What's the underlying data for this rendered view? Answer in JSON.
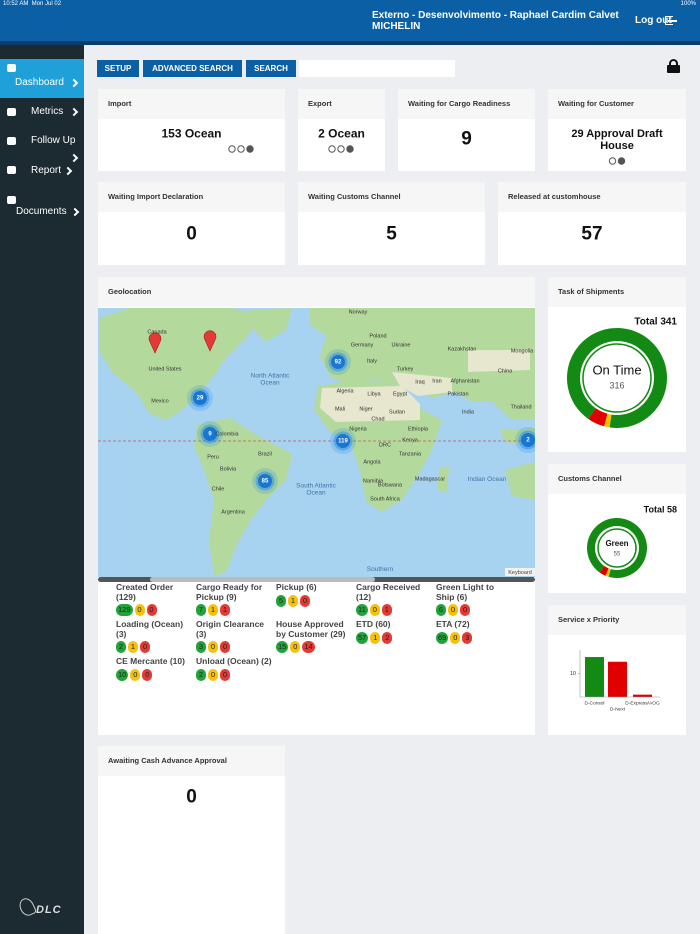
{
  "status_bar": {
    "time": "10:52 AM  Mon Jul 02",
    "battery": "100%"
  },
  "header": {
    "user": "Externo - Desenvolvimento - Raphael Cardim Calvet",
    "company": "MICHELIN",
    "logout": "Log out"
  },
  "sidebar": {
    "items": [
      "Dashboard",
      "Metrics",
      "Follow Up",
      "Report",
      "Documents"
    ],
    "logo": "DLC"
  },
  "toolbar": {
    "buttons": [
      "SETUP",
      "ADVANCED SEARCH",
      "SEARCH"
    ]
  },
  "cards": [
    {
      "title": "Import",
      "value": "153 Ocean"
    },
    {
      "title": "Export",
      "value": "2 Ocean"
    },
    {
      "title": "Waiting for Cargo Readiness",
      "value": 9
    },
    {
      "title": "Waiting for Customer",
      "value": "29 Approval Draft House"
    },
    {
      "title": "Waiting Import Declaration",
      "value": 0
    },
    {
      "title": "Waiting Customs Channel",
      "value": 5
    },
    {
      "title": "Released at customhouse",
      "value": 57
    },
    {
      "title": "Awaiting Cash Advance Approval",
      "value": 0
    }
  ],
  "geolocation": {
    "title": "Geolocation",
    "map_labels": [
      "Canada",
      "United States",
      "Mexico",
      "North Atlantic Ocean",
      "Norway",
      "Poland",
      "Germany",
      "Ukraine",
      "Italy",
      "Kazakhstan",
      "Mongolia",
      "Turkey",
      "Iraq",
      "Iran",
      "Afghanistan",
      "Pakistan",
      "China",
      "India",
      "Thailand",
      "Algeria",
      "Libya",
      "Egypt",
      "Mali",
      "Niger",
      "Chad",
      "Sudan",
      "Nigeria",
      "Ethiopia",
      "DRC",
      "Kenya",
      "Tanzania",
      "Angola",
      "Namibia",
      "Botswana",
      "South Africa",
      "Madagascar",
      "Colombia",
      "Peru",
      "Brazil",
      "Bolivia",
      "Chile",
      "Argentina",
      "South Atlantic Ocean",
      "Indian Ocean",
      "Southern"
    ],
    "clusters": [
      92,
      29,
      9,
      119,
      85,
      2
    ],
    "map_footer": "Keyboard",
    "statuses": [
      {
        "name": "Created Order (129)",
        "counts": [
          129,
          0,
          0
        ]
      },
      {
        "name": "Cargo Ready for Pickup (9)",
        "counts": [
          7,
          1,
          1
        ]
      },
      {
        "name": "Pickup (6)",
        "counts": [
          5,
          1,
          0
        ]
      },
      {
        "name": "Cargo Received (12)",
        "counts": [
          11,
          0,
          1
        ]
      },
      {
        "name": "Green Light to Ship (6)",
        "counts": [
          6,
          0,
          0
        ]
      },
      {
        "name": "Loading (Ocean) (3)",
        "counts": [
          2,
          1,
          0
        ]
      },
      {
        "name": "Origin Clearance (3)",
        "counts": [
          3,
          0,
          0
        ]
      },
      {
        "name": "House Approved by Customer (29)",
        "counts": [
          15,
          0,
          14
        ]
      },
      {
        "name": "ETD (60)",
        "counts": [
          57,
          1,
          2
        ]
      },
      {
        "name": "ETA (72)",
        "counts": [
          69,
          0,
          3
        ]
      },
      {
        "name": "CE Mercante (10)",
        "counts": [
          10,
          0,
          0
        ]
      },
      {
        "name": "Unload (Ocean) (2)",
        "counts": [
          2,
          0,
          0
        ]
      }
    ]
  },
  "chart_data": [
    {
      "type": "donut",
      "title": "Task of Shipments",
      "total_label": "Total 341",
      "categories": [
        "On Time",
        null,
        null
      ],
      "values": [
        316,
        6,
        19
      ],
      "colors": [
        "#138a13",
        "#f5c400",
        "#e00000"
      ]
    },
    {
      "type": "donut",
      "title": "Customs Channel",
      "total_label": "Total 58",
      "categories": [
        "Green",
        null,
        null
      ],
      "values": [
        55,
        1,
        2
      ],
      "colors": [
        "#138a13",
        "#f5c400",
        "#e00000"
      ]
    },
    {
      "type": "bar",
      "title": "Service x Priority",
      "categories": [
        "D-Consol",
        "D-Next",
        "D-Express/AOG"
      ],
      "values": [
        17,
        15,
        1
      ],
      "colors": [
        "#138a13",
        "#e00000",
        "#e00000"
      ],
      "ylim": [
        0,
        20
      ],
      "yticks": [
        10
      ]
    }
  ]
}
